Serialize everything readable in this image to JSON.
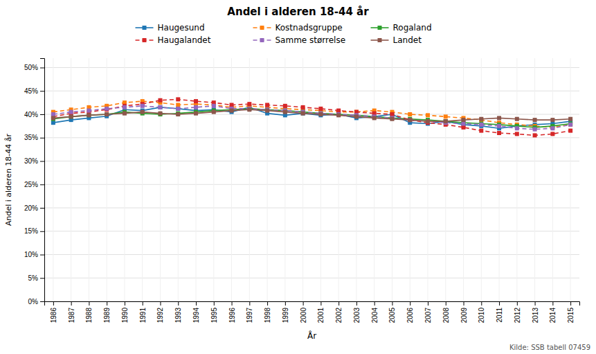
{
  "chart_data": {
    "type": "line",
    "title": "Andel i alderen 18-44 år",
    "x_label": "År",
    "y_label": "Andel i alderen 18-44 år",
    "annotations": [
      "Kilde: SSB tabell 07459"
    ],
    "x": [
      1986,
      1987,
      1988,
      1989,
      1990,
      1991,
      1992,
      1993,
      1994,
      1995,
      1996,
      1997,
      1998,
      1999,
      2000,
      2001,
      2002,
      2003,
      2004,
      2005,
      2006,
      2007,
      2008,
      2009,
      2010,
      2011,
      2012,
      2013,
      2014,
      2015
    ],
    "series": [
      {
        "name": "Haugesund",
        "line_style": "solid",
        "marker": "square",
        "values": [
          38.2,
          38.8,
          39.2,
          39.6,
          41.0,
          40.8,
          41.5,
          41.2,
          40.8,
          41.0,
          40.5,
          41.5,
          40.2,
          39.8,
          40.2,
          39.8,
          40.0,
          39.2,
          39.5,
          40.0,
          38.2,
          38.0,
          38.5,
          37.8,
          37.5,
          37.0,
          37.5,
          37.8,
          38.0,
          38.5
        ]
      },
      {
        "name": "Kostnadsgruppe",
        "line_style": "dashed",
        "marker": "square",
        "values": [
          40.5,
          41.0,
          41.5,
          41.8,
          42.5,
          42.8,
          42.5,
          42.0,
          42.2,
          42.0,
          41.5,
          41.8,
          41.5,
          41.2,
          41.0,
          40.8,
          40.5,
          40.5,
          40.8,
          40.5,
          40.0,
          39.8,
          39.5,
          39.2,
          38.8,
          38.2,
          37.8,
          37.5,
          37.2,
          37.8
        ]
      },
      {
        "name": "Rogaland",
        "line_style": "solid",
        "marker": "square",
        "values": [
          39.0,
          39.5,
          39.8,
          40.0,
          40.5,
          40.2,
          40.0,
          40.2,
          40.5,
          40.8,
          41.0,
          41.2,
          41.0,
          40.8,
          40.5,
          40.2,
          40.0,
          39.8,
          39.5,
          39.2,
          39.0,
          38.8,
          38.5,
          38.2,
          38.0,
          37.8,
          37.5,
          37.2,
          37.5,
          38.0
        ]
      },
      {
        "name": "Haugalandet",
        "line_style": "dashed",
        "marker": "square",
        "values": [
          39.5,
          40.2,
          40.5,
          41.0,
          41.8,
          42.2,
          43.0,
          43.2,
          42.8,
          42.5,
          42.0,
          42.2,
          42.0,
          41.8,
          41.5,
          41.2,
          40.8,
          40.5,
          40.2,
          40.0,
          38.8,
          38.2,
          37.8,
          37.2,
          36.5,
          36.0,
          35.8,
          35.5,
          35.8,
          36.5
        ]
      },
      {
        "name": "Samme størrelse",
        "line_style": "dashed",
        "marker": "square",
        "values": [
          40.0,
          40.5,
          40.8,
          41.2,
          41.5,
          41.8,
          41.5,
          41.2,
          41.5,
          41.8,
          41.2,
          41.2,
          41.0,
          40.8,
          40.5,
          40.2,
          40.0,
          39.8,
          39.5,
          39.2,
          38.8,
          38.5,
          38.2,
          38.0,
          37.8,
          37.5,
          37.0,
          36.8,
          37.0,
          37.8
        ]
      },
      {
        "name": "Landet",
        "line_style": "solid",
        "marker": "square",
        "values": [
          39.2,
          39.5,
          39.8,
          40.0,
          40.2,
          40.5,
          40.2,
          40.0,
          40.2,
          40.5,
          40.8,
          41.0,
          40.8,
          40.5,
          40.2,
          40.0,
          39.8,
          39.5,
          39.2,
          39.0,
          38.8,
          38.5,
          38.5,
          38.8,
          39.0,
          39.2,
          39.0,
          38.8,
          38.8,
          39.0
        ]
      }
    ],
    "xlim": [
      1985.5,
      2015.5
    ],
    "xticks": [
      1986,
      1987,
      1988,
      1989,
      1990,
      1991,
      1992,
      1993,
      1994,
      1995,
      1996,
      1997,
      1998,
      1999,
      2000,
      2001,
      2002,
      2003,
      2004,
      2005,
      2006,
      2007,
      2008,
      2009,
      2010,
      2011,
      2012,
      2013,
      2014,
      2015
    ],
    "ylim": [
      0,
      52
    ],
    "yticks": [
      {
        "value": 0,
        "label": "0%"
      },
      {
        "value": 5,
        "label": "5%"
      },
      {
        "value": 10,
        "label": "10%"
      },
      {
        "value": 15,
        "label": "15%"
      },
      {
        "value": 20,
        "label": "20%"
      },
      {
        "value": 25,
        "label": "25%"
      },
      {
        "value": 30,
        "label": "30%"
      },
      {
        "value": 35,
        "label": "35%"
      },
      {
        "value": 40,
        "label": "40%"
      },
      {
        "value": 45,
        "label": "45%"
      },
      {
        "value": 50,
        "label": "50%"
      }
    ],
    "grid": true,
    "legend": "top"
  }
}
